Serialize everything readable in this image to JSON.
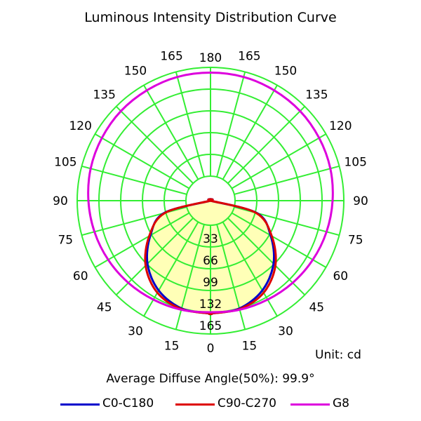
{
  "chart_data": {
    "type": "polar",
    "title": "Luminous Intensity Distribution Curve",
    "unit_label": "Unit: cd",
    "average_angle_label": "Average Diffuse Angle(50%): 99.9°",
    "radial_ticks": [
      33,
      66,
      99,
      132,
      165
    ],
    "radial_max": 165,
    "angle_labels": {
      "left": [
        0,
        15,
        30,
        45,
        60,
        75,
        90,
        105,
        120,
        135,
        150,
        165,
        180
      ],
      "right": [
        15,
        30,
        45,
        60,
        75,
        90,
        105,
        120,
        135,
        150,
        165
      ]
    },
    "grid_color": "#33ee33",
    "fill_color": "#ffffaa",
    "series": [
      {
        "name": "C0-C180",
        "color": "#0000cc",
        "angles": [
          0,
          15,
          30,
          45,
          60,
          75,
          90
        ],
        "values": [
          134,
          132,
          120,
          98,
          68,
          36,
          0
        ]
      },
      {
        "name": "C90-C270",
        "color": "#dd0000",
        "angles": [
          0,
          15,
          30,
          45,
          60,
          75,
          90
        ],
        "values": [
          134,
          133,
          124,
          102,
          70,
          34,
          0
        ]
      },
      {
        "name": "G8",
        "color": "#dd00dd",
        "angles": [
          0,
          15,
          30,
          45,
          60,
          75,
          90,
          105,
          120,
          135,
          150,
          165,
          180
        ],
        "values": [
          132,
          134,
          136,
          139,
          142,
          145,
          148,
          151,
          153,
          155,
          156,
          157,
          157
        ]
      }
    ]
  }
}
